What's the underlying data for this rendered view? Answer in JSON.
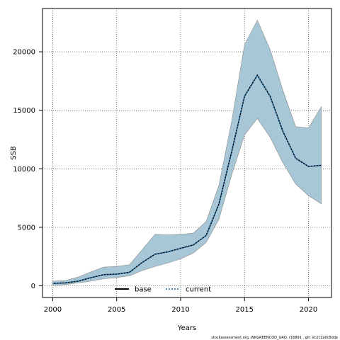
{
  "chart_data": {
    "type": "area",
    "xlabel": "Years",
    "ylabel": "SSB",
    "xlim": [
      1999.2,
      2021.8
    ],
    "ylim": [
      -1000,
      23700
    ],
    "xticks": [
      2000,
      2005,
      2010,
      2015,
      2020
    ],
    "yticks": [
      0,
      5000,
      10000,
      15000,
      20000
    ],
    "grid": true,
    "legend_position": "bottom-center",
    "x": [
      2000,
      2001,
      2002,
      2003,
      2004,
      2005,
      2006,
      2007,
      2008,
      2009,
      2010,
      2011,
      2012,
      2013,
      2014,
      2015,
      2016,
      2017,
      2018,
      2019,
      2020,
      2021
    ],
    "series": [
      {
        "name": "base",
        "style": "solid",
        "color": "#000000",
        "values": [
          200,
          250,
          400,
          700,
          950,
          1000,
          1150,
          2000,
          2700,
          2900,
          3200,
          3500,
          4300,
          7000,
          11500,
          16200,
          18000,
          16200,
          13200,
          10900,
          10200,
          10300
        ]
      },
      {
        "name": "current",
        "style": "dotted",
        "color": "#2e86c1",
        "values": [
          200,
          250,
          400,
          700,
          950,
          1000,
          1150,
          2000,
          2700,
          2900,
          3200,
          3500,
          4300,
          7000,
          11500,
          16200,
          18000,
          16200,
          13200,
          10900,
          10200,
          10300
        ]
      }
    ],
    "confidence_band": {
      "color": "#a7c7d7",
      "lower": [
        50,
        100,
        250,
        400,
        600,
        700,
        850,
        1300,
        1650,
        1950,
        2300,
        2800,
        3700,
        5700,
        9500,
        12900,
        14300,
        12700,
        10500,
        8700,
        7700,
        7000
      ],
      "upper": [
        400,
        450,
        750,
        1200,
        1600,
        1650,
        1800,
        3100,
        4400,
        4350,
        4400,
        4500,
        5500,
        8600,
        14100,
        20600,
        22700,
        20200,
        16700,
        13600,
        13500,
        15300
      ]
    },
    "footer": "stockassessment.org, WKGREENCOD_GRO, r16891 , git: ec2c2a0c6dde"
  }
}
